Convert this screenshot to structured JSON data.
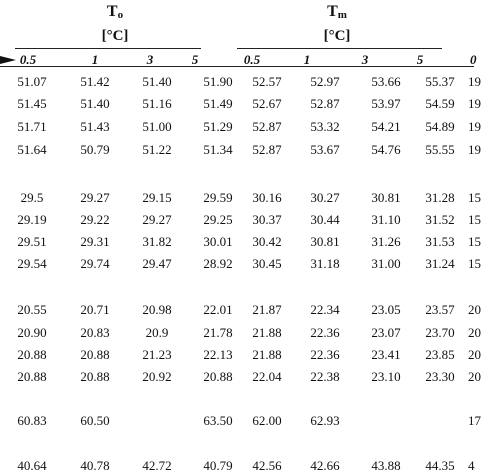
{
  "headers": [
    {
      "symbol": "T",
      "sub": "o",
      "unit": "[°C]",
      "cols": [
        "0.5",
        "1",
        "3",
        "5"
      ]
    },
    {
      "symbol": "T",
      "sub": "m",
      "unit": "[°C]",
      "cols": [
        "0.5",
        "1",
        "3",
        "5"
      ]
    },
    {
      "cols": [
        "0"
      ]
    }
  ],
  "table": {
    "rows": [
      [
        "51.07",
        "51.42",
        "51.40",
        "51.90",
        "52.57",
        "52.97",
        "53.66",
        "55.37",
        "19"
      ],
      [
        "51.45",
        "51.40",
        "51.16",
        "51.49",
        "52.67",
        "52.87",
        "53.97",
        "54.59",
        "19"
      ],
      [
        "51.71",
        "51.43",
        "51.00",
        "51.29",
        "52.87",
        "53.32",
        "54.21",
        "54.89",
        "19"
      ],
      [
        "51.64",
        "50.79",
        "51.22",
        "51.34",
        "52.87",
        "53.67",
        "54.76",
        "55.55",
        "19"
      ],
      [
        "29.5",
        "29.27",
        "29.15",
        "29.59",
        "30.16",
        "30.27",
        "30.81",
        "31.28",
        "15"
      ],
      [
        "29.19",
        "29.22",
        "29.27",
        "29.25",
        "30.37",
        "30.44",
        "31.10",
        "31.52",
        "15"
      ],
      [
        "29.51",
        "29.31",
        "31.82",
        "30.01",
        "30.42",
        "30.81",
        "31.26",
        "31.53",
        "15"
      ],
      [
        "29.54",
        "29.74",
        "29.47",
        "28.92",
        "30.45",
        "31.18",
        "31.00",
        "31.24",
        "15"
      ],
      [
        "20.55",
        "20.71",
        "20.98",
        "22.01",
        "21.87",
        "22.34",
        "23.05",
        "23.57",
        "20"
      ],
      [
        "20.90",
        "20.83",
        "20.9",
        "21.78",
        "21.88",
        "22.36",
        "23.07",
        "23.70",
        "20"
      ],
      [
        "20.88",
        "20.88",
        "21.23",
        "22.13",
        "21.88",
        "22.36",
        "23.41",
        "23.85",
        "20"
      ],
      [
        "20.88",
        "20.88",
        "20.92",
        "20.88",
        "22.04",
        "22.38",
        "23.10",
        "23.30",
        "20"
      ],
      [
        "60.83",
        "60.50",
        null,
        "63.50",
        "62.00",
        "62.93",
        null,
        null,
        "17"
      ],
      [
        "40.64",
        "40.78",
        "42.72",
        "40.79",
        "42.56",
        "42.66",
        "43.88",
        "44.35",
        "4"
      ]
    ]
  }
}
